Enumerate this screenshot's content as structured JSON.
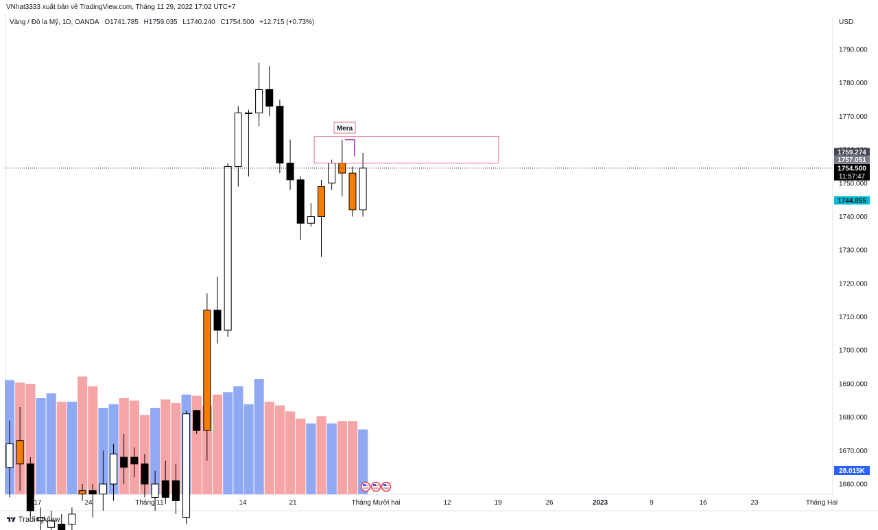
{
  "header": {
    "publisher": "VNhat3333 xuất bản về TradingView.com, Tháng 11 29, 2022 17:02 UTC+7"
  },
  "legend": {
    "symbol": "Vàng / Đô la Mỹ, 1D, OANDA",
    "open": "O1741.785",
    "high": "H1759.035",
    "low": "L1740.240",
    "close": "C1754.500",
    "change": "+12.715 (+0.73%)"
  },
  "currency": "USD",
  "annotation": {
    "label": "Mera",
    "box_top": 1764,
    "box_bottom": 1756
  },
  "price_tags": [
    {
      "text": "1759.274",
      "value": 1759.274,
      "bg": "#434651",
      "fg": "#ffffff"
    },
    {
      "text": "1757.051",
      "value": 1757.051,
      "bg": "#787b86",
      "fg": "#ffffff"
    },
    {
      "text": "1754.500",
      "value": 1754.5,
      "bg": "#000000",
      "fg": "#ffffff",
      "sub": "11:57:47"
    },
    {
      "text": "1744.855",
      "value": 1744.855,
      "bg": "#00bcd4",
      "fg": "#131722"
    }
  ],
  "volume_tag": {
    "text": "28.015K",
    "bg": "#2962ff",
    "fg": "#ffffff"
  },
  "footer": {
    "brand": "TradingView"
  },
  "colors": {
    "up_fill": "#ffffff",
    "down_fill": "#000000",
    "highlight": "#f57c00",
    "wick": "#000000",
    "vol_up": "#8fa9f5",
    "vol_down": "#f5a5a5",
    "box": "#e06a7d",
    "purple": "#9c27b0",
    "axis_text": "#131722"
  },
  "chart_data": {
    "type": "candlestick",
    "title": "Vàng / Đô la Mỹ, 1D, OANDA",
    "ylim": [
      1656,
      1800
    ],
    "y_ticks": [
      1660,
      1670,
      1680,
      1690,
      1700,
      1710,
      1720,
      1730,
      1740,
      1750,
      1760,
      1770,
      1780,
      1790
    ],
    "x_tick_labels": [
      "17",
      "24",
      "Tháng 11",
      "14",
      "21",
      "Tháng Mười hai",
      "12",
      "19",
      "26",
      "2023",
      "9",
      "16",
      "23",
      "Tháng Hai"
    ],
    "candles": [
      {
        "o": 1665,
        "h": 1679,
        "l": 1656,
        "c": 1672,
        "v": 0.95,
        "up": true
      },
      {
        "o": 1666,
        "h": 1683,
        "l": 1658,
        "c": 1673,
        "v": 0.93,
        "up": false,
        "hl": true
      },
      {
        "o": 1666,
        "h": 1668,
        "l": 1650,
        "c": 1652,
        "v": 0.92,
        "up": false
      },
      {
        "o": 1650,
        "h": 1653,
        "l": 1645,
        "c": 1649,
        "v": 0.8,
        "up": true
      },
      {
        "o": 1649,
        "h": 1652,
        "l": 1643,
        "c": 1647,
        "v": 0.84,
        "up": true
      },
      {
        "o": 1648,
        "h": 1651,
        "l": 1642,
        "c": 1645,
        "v": 0.77,
        "up": false
      },
      {
        "o": 1648,
        "h": 1653,
        "l": 1644,
        "c": 1651,
        "v": 0.77,
        "up": true
      },
      {
        "o": 1657,
        "h": 1660,
        "l": 1655,
        "c": 1658,
        "v": 0.98,
        "up": false,
        "hl": true
      },
      {
        "o": 1658,
        "h": 1660,
        "l": 1650,
        "c": 1657,
        "v": 0.9,
        "up": false
      },
      {
        "o": 1657,
        "h": 1670,
        "l": 1652,
        "c": 1660,
        "v": 0.72,
        "up": true
      },
      {
        "o": 1660,
        "h": 1672,
        "l": 1655,
        "c": 1669,
        "v": 0.75,
        "up": true
      },
      {
        "o": 1665,
        "h": 1675,
        "l": 1660,
        "c": 1668,
        "v": 0.8,
        "up": false
      },
      {
        "o": 1668,
        "h": 1671,
        "l": 1662,
        "c": 1666,
        "v": 0.78,
        "up": false
      },
      {
        "o": 1666,
        "h": 1669,
        "l": 1656,
        "c": 1660,
        "v": 0.66,
        "up": false
      },
      {
        "o": 1660,
        "h": 1664,
        "l": 1652,
        "c": 1656,
        "v": 0.72,
        "up": true
      },
      {
        "o": 1656,
        "h": 1667,
        "l": 1654,
        "c": 1661,
        "v": 0.79,
        "up": false
      },
      {
        "o": 1661,
        "h": 1666,
        "l": 1651,
        "c": 1655,
        "v": 0.76,
        "up": false
      },
      {
        "o": 1650,
        "h": 1682,
        "l": 1648,
        "c": 1681,
        "v": 0.83,
        "up": true
      },
      {
        "o": 1682,
        "h": 1682,
        "l": 1675,
        "c": 1676,
        "v": 0.82,
        "up": false
      },
      {
        "o": 1676,
        "h": 1717,
        "l": 1667,
        "c": 1712,
        "v": 0.74,
        "up": false,
        "hl": true
      },
      {
        "o": 1712,
        "h": 1722,
        "l": 1702,
        "c": 1706,
        "v": 0.83,
        "up": false
      },
      {
        "o": 1706,
        "h": 1756,
        "l": 1704,
        "c": 1755,
        "v": 0.85,
        "up": true
      },
      {
        "o": 1755,
        "h": 1773,
        "l": 1749,
        "c": 1771,
        "v": 0.9,
        "up": true
      },
      {
        "o": 1771,
        "h": 1772,
        "l": 1752,
        "c": 1771,
        "v": 0.75,
        "up": true
      },
      {
        "o": 1771,
        "h": 1786,
        "l": 1767,
        "c": 1778,
        "v": 0.96,
        "up": true
      },
      {
        "o": 1778,
        "h": 1785,
        "l": 1770,
        "c": 1773,
        "v": 0.77,
        "up": false
      },
      {
        "o": 1773,
        "h": 1775,
        "l": 1753,
        "c": 1756,
        "v": 0.74,
        "up": false
      },
      {
        "o": 1756,
        "h": 1763,
        "l": 1748,
        "c": 1751,
        "v": 0.69,
        "up": false
      },
      {
        "o": 1751,
        "h": 1752,
        "l": 1733,
        "c": 1738,
        "v": 0.63,
        "up": false
      },
      {
        "o": 1738,
        "h": 1744,
        "l": 1737,
        "c": 1740,
        "v": 0.59,
        "up": true
      },
      {
        "o": 1740,
        "h": 1751,
        "l": 1728,
        "c": 1749,
        "v": 0.65,
        "up": false,
        "hl": true
      },
      {
        "o": 1750,
        "h": 1757,
        "l": 1748,
        "c": 1756,
        "v": 0.59,
        "up": true
      },
      {
        "o": 1756,
        "h": 1763,
        "l": 1746,
        "c": 1753,
        "v": 0.61,
        "up": false,
        "hl": true
      },
      {
        "o": 1753,
        "h": 1755,
        "l": 1740,
        "c": 1742,
        "v": 0.61,
        "up": false,
        "hl": true
      },
      {
        "o": 1742,
        "h": 1759,
        "l": 1740,
        "c": 1754.5,
        "v": 0.54,
        "up": true
      }
    ]
  }
}
